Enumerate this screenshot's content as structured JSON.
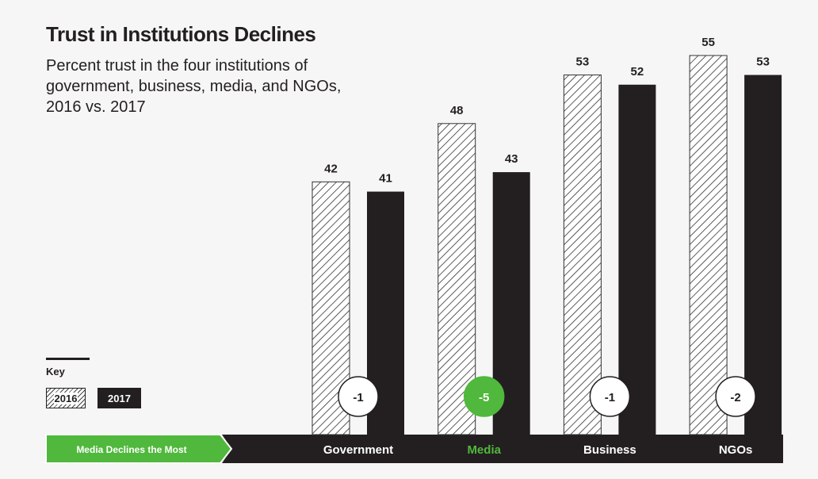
{
  "chart_data": {
    "type": "bar",
    "title": "Trust in Institutions Declines",
    "subtitle": "Percent trust in the four institutions of government, business, media, and NGOs, 2016 vs. 2017",
    "categories": [
      "Government",
      "Media",
      "Business",
      "NGOs"
    ],
    "series": [
      {
        "name": "2016",
        "values": [
          42,
          48,
          53,
          55
        ]
      },
      {
        "name": "2017",
        "values": [
          41,
          43,
          52,
          53
        ]
      }
    ],
    "changes": [
      "-1",
      "-5",
      "-1",
      "-2"
    ],
    "highlight": "Media",
    "ylim": [
      16,
      56
    ],
    "legend_title": "Key",
    "banner": "Media Declines the Most",
    "colors": {
      "dark": "#231f20",
      "green": "#50b83c"
    }
  }
}
